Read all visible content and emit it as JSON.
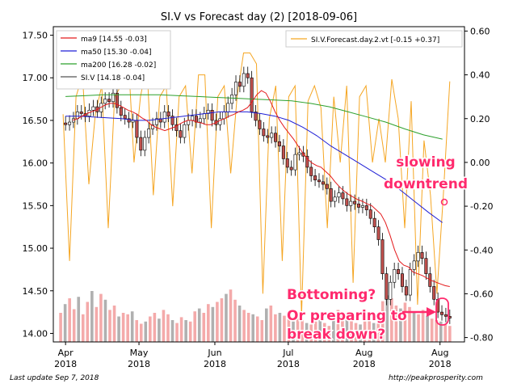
{
  "chart_data": {
    "type": "candlestick",
    "title": "SI.V vs Forecast day (2)  [2018-09-06]",
    "left_axis": {
      "ylim": [
        13.9,
        17.6
      ],
      "ticks": [
        "17.50",
        "17.00",
        "16.50",
        "16.00",
        "15.50",
        "15.00",
        "14.50",
        "14.00"
      ],
      "tick_values": [
        17.5,
        17.0,
        16.5,
        16.0,
        15.5,
        15.0,
        14.5,
        14.0
      ]
    },
    "right_axis": {
      "ylim": [
        -0.82,
        0.62
      ],
      "ticks": [
        "0.60",
        "0.40",
        "0.20",
        "0.00",
        "-0.20",
        "-0.40",
        "-0.60",
        "-0.80"
      ],
      "tick_values": [
        0.6,
        0.4,
        0.2,
        0.0,
        -0.2,
        -0.4,
        -0.6,
        -0.8
      ]
    },
    "x_ticks": [
      {
        "line1": "Apr",
        "line2": "2018",
        "day": 0
      },
      {
        "line1": "May",
        "line2": "2018",
        "day": 30
      },
      {
        "line1": "Jun",
        "line2": "2018",
        "day": 61
      },
      {
        "line1": "Jul",
        "line2": "2018",
        "day": 91
      },
      {
        "line1": "Aug",
        "line2": "2018",
        "day": 122
      },
      {
        "line1": "Aug",
        "line2": "2018",
        "day": 153
      }
    ],
    "xlim_days": [
      -5,
      163
    ],
    "legend_left": [
      {
        "name": "ma9 [14.55 -0.03]",
        "color": "#e41a1c"
      },
      {
        "name": "ma50 [15.30 -0.04]",
        "color": "#1f1fd6"
      },
      {
        "name": "ma200 [16.28 -0.02]",
        "color": "#2ca02c"
      },
      {
        "name": "SI.V [14.18 -0.04]",
        "color": "#555555"
      }
    ],
    "legend_right": [
      {
        "name": "SI.V.Forecast.day.2.vt [-0.15 +0.37]",
        "color": "#f5a623"
      }
    ],
    "series": [
      {
        "name": "SI.V",
        "type": "candle",
        "close": [
          16.45,
          16.48,
          16.52,
          16.6,
          16.58,
          16.55,
          16.62,
          16.66,
          16.6,
          16.7,
          16.75,
          16.72,
          16.82,
          16.65,
          16.56,
          16.52,
          16.48,
          16.5,
          16.3,
          16.15,
          16.3,
          16.4,
          16.45,
          16.52,
          16.48,
          16.6,
          16.55,
          16.45,
          16.38,
          16.3,
          16.45,
          16.5,
          16.55,
          16.48,
          16.52,
          16.58,
          16.62,
          16.5,
          16.45,
          16.52,
          16.6,
          16.7,
          16.8,
          16.95,
          16.9,
          17.05,
          17.0,
          16.6,
          16.5,
          16.4,
          16.32,
          16.3,
          16.35,
          16.25,
          16.2,
          16.05,
          15.95,
          15.92,
          16.1,
          16.12,
          16.08,
          15.95,
          15.85,
          15.8,
          15.78,
          15.75,
          15.7,
          15.55,
          15.6,
          15.65,
          15.58,
          15.5,
          15.55,
          15.52,
          15.48,
          15.5,
          15.45,
          15.35,
          15.25,
          15.1,
          14.7,
          14.4,
          14.6,
          14.75,
          14.7,
          14.55,
          14.45,
          14.75,
          14.85,
          14.95,
          14.88,
          14.7,
          14.55,
          14.4,
          14.25,
          14.22,
          14.2,
          14.18
        ]
      },
      {
        "name": "ma9",
        "values": [
          16.5,
          16.52,
          16.55,
          16.58,
          16.6,
          16.62,
          16.65,
          16.68,
          16.7,
          16.7,
          16.68,
          16.65,
          16.62,
          16.6,
          16.57,
          16.53,
          16.5,
          16.45,
          16.42,
          16.4,
          16.38,
          16.4,
          16.42,
          16.45,
          16.48,
          16.5,
          16.5,
          16.48,
          16.47,
          16.45,
          16.45,
          16.47,
          16.5,
          16.52,
          16.55,
          16.57,
          16.6,
          16.62,
          16.65,
          16.72,
          16.8,
          16.85,
          16.82,
          16.72,
          16.6,
          16.5,
          16.42,
          16.35,
          16.28,
          16.2,
          16.12,
          16.05,
          16.0,
          15.97,
          15.95,
          15.9,
          15.85,
          15.78,
          15.72,
          15.67,
          15.63,
          15.6,
          15.57,
          15.55,
          15.52,
          15.5,
          15.45,
          15.4,
          15.3,
          15.15,
          14.98,
          14.85,
          14.8,
          14.78,
          14.72,
          14.7,
          14.68,
          14.65,
          14.62,
          14.6,
          14.58,
          14.56,
          14.55
        ]
      },
      {
        "name": "ma50",
        "values": [
          16.55,
          16.55,
          16.54,
          16.53,
          16.52,
          16.5,
          16.5,
          16.52,
          16.54,
          16.56,
          16.58,
          16.6,
          16.6,
          16.6,
          16.58,
          16.55,
          16.5,
          16.42,
          16.32,
          16.2,
          16.1,
          16.0,
          15.9,
          15.8,
          15.68,
          15.55,
          15.42,
          15.3
        ]
      },
      {
        "name": "ma200",
        "values": [
          16.78,
          16.79,
          16.8,
          16.8,
          16.8,
          16.8,
          16.79,
          16.78,
          16.77,
          16.76,
          16.75,
          16.74,
          16.73,
          16.7,
          16.66,
          16.6,
          16.54,
          16.48,
          16.4,
          16.33,
          16.28
        ]
      },
      {
        "name": "SI.V.Forecast.day.2.vt",
        "axis": "right",
        "values": [
          0.22,
          -0.45,
          0.3,
          0.4,
          -0.1,
          0.22,
          0.35,
          -0.3,
          0.3,
          0.35,
          0.55,
          0.0,
          0.3,
          0.45,
          -0.15,
          0.3,
          0.35,
          -0.2,
          0.3,
          0.35,
          -0.05,
          0.4,
          0.4,
          -0.3,
          0.3,
          0.35,
          -0.05,
          0.3,
          0.5,
          0.5,
          0.45,
          -0.6,
          0.2,
          0.35,
          -0.45,
          0.3,
          0.35,
          -0.7,
          0.28,
          0.35,
          0.25,
          -0.3,
          0.3,
          0.0,
          0.35,
          -0.55,
          0.3,
          0.35,
          0.0,
          0.2,
          0.0,
          0.38,
          0.2,
          -0.3,
          0.28,
          -0.65,
          0.1,
          -0.15,
          -0.6,
          -0.15,
          0.37
        ]
      }
    ],
    "volume": {
      "values": [
        40,
        52,
        60,
        45,
        62,
        38,
        55,
        70,
        48,
        66,
        58,
        44,
        50,
        35,
        40,
        38,
        42,
        30,
        25,
        28,
        35,
        40,
        32,
        44,
        38,
        30,
        26,
        34,
        30,
        28,
        42,
        46,
        40,
        52,
        48,
        55,
        60,
        66,
        72,
        58,
        50,
        44,
        40,
        38,
        35,
        30,
        46,
        50,
        38,
        40,
        36,
        32,
        28,
        34,
        30,
        26,
        24,
        28,
        30,
        26,
        22,
        34,
        44,
        38,
        40,
        30,
        26,
        24,
        28,
        30,
        26,
        40,
        56,
        64,
        60,
        50,
        46,
        54,
        48,
        40,
        38,
        44,
        36,
        32,
        30,
        28,
        24,
        22
      ]
    },
    "annotations": [
      {
        "text": "slowing",
        "color": "#ff2a6d"
      },
      {
        "text": "downtrend",
        "color": "#ff2a6d"
      },
      {
        "text": "Bottoming?",
        "color": "#ff2a6d"
      },
      {
        "text": "Or preparing to",
        "color": "#ff2a6d"
      },
      {
        "text": "break down?",
        "color": "#ff2a6d"
      }
    ]
  },
  "footer": {
    "left": "Last update Sep  7, 2018",
    "right": "http://peakprosperity.com"
  }
}
